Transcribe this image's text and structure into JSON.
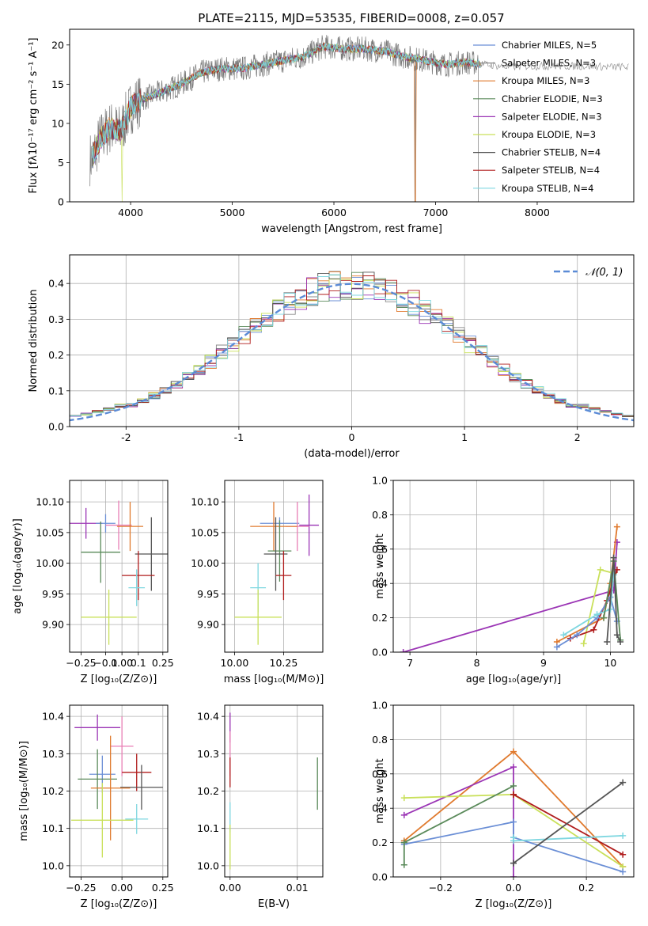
{
  "title": "PLATE=2115, MJD=53535, FIBERID=0008, z=0.057",
  "colors": {
    "Chabrier MILES": "#6b8fd6",
    "Salpeter MILES": "#8a8a8a",
    "Kroupa MILES": "#e07a2e",
    "Chabrier ELODIE": "#5a8a5a",
    "Salpeter ELODIE": "#9b35b5",
    "Kroupa ELODIE": "#c9e05a",
    "Chabrier STELIB": "#555555",
    "Salpeter STELIB": "#b01c1c",
    "Kroupa STELIB": "#7fd7e0",
    "data": "#7a7a7a",
    "pink": "#e87fb5",
    "lightgreen": "#90e08a",
    "gauss": "#5b8bd6"
  },
  "chart_data": [
    {
      "type": "line",
      "xlabel": "wavelength [Angstrom, rest frame]",
      "ylabel": "Flux [fλ10⁻¹⁷ erg cm⁻² s⁻¹ A⁻¹]",
      "xlim": [
        3400,
        8950
      ],
      "ylim": [
        0,
        22
      ],
      "xticks": [
        4000,
        5000,
        6000,
        7000,
        8000
      ],
      "yticks": [
        0,
        5,
        10,
        15,
        20
      ],
      "grid": false,
      "legend_position": "top-right",
      "legend": [
        {
          "label": "Chabrier MILES, N_SSP=5",
          "color": "#6b8fd6"
        },
        {
          "label": "Salpeter MILES, N_SSP=3",
          "color": "#8a8a8a"
        },
        {
          "label": "Kroupa MILES, N_SSP=3",
          "color": "#e07a2e"
        },
        {
          "label": "Chabrier ELODIE, N_SSP=3",
          "color": "#5a8a5a"
        },
        {
          "label": "Salpeter ELODIE, N_SSP=3",
          "color": "#9b35b5"
        },
        {
          "label": "Kroupa ELODIE, N_SSP=3",
          "color": "#c9e05a"
        },
        {
          "label": "Chabrier STELIB, N_SSP=4",
          "color": "#555555"
        },
        {
          "label": "Salpeter STELIB, N_SSP=4",
          "color": "#b01c1c"
        },
        {
          "label": "Kroupa STELIB, N_SSP=4",
          "color": "#7fd7e0"
        }
      ],
      "continuum": {
        "x": [
          3620,
          3700,
          3800,
          3900,
          4000,
          4100,
          4300,
          4500,
          4700,
          4900,
          5100,
          5300,
          5500,
          5700,
          5900,
          6100,
          6300,
          6500,
          6700,
          6900,
          7100,
          7300,
          7500,
          7700,
          7900,
          8100,
          8300,
          8500,
          8700,
          8900
        ],
        "y": [
          5.5,
          8.0,
          9.5,
          9.0,
          12.0,
          13.0,
          14.0,
          15.0,
          16.5,
          17.0,
          17.0,
          17.5,
          18.0,
          18.5,
          19.8,
          19.5,
          19.5,
          19.2,
          18.5,
          18.0,
          17.5,
          17.8,
          17.5,
          17.2,
          17.3,
          17.3,
          17.3,
          17.3,
          17.2,
          17.2
        ]
      },
      "data_range": [
        3600,
        7420
      ],
      "dips": [
        {
          "x": 6800,
          "y": 0
        },
        {
          "x": 7420,
          "y": 0
        },
        {
          "x": 3920,
          "y": 0
        }
      ]
    },
    {
      "type": "histogram",
      "xlabel": "(data-model)/error",
      "ylabel": "Normed distribution",
      "xlim": [
        -2.5,
        2.5
      ],
      "ylim": [
        0,
        0.48
      ],
      "xticks": [
        -2,
        -1,
        0,
        1,
        2
      ],
      "yticks": [
        0.0,
        0.1,
        0.2,
        0.3,
        0.4
      ],
      "grid": true,
      "bin_width": 0.1,
      "legend": [
        {
          "label": "𝒩(0, 1)",
          "color": "#5b8bd6"
        }
      ],
      "legend_position": "top-right",
      "gaussian": {
        "mu": 0,
        "sigma": 1
      }
    },
    {
      "type": "scatter",
      "panel": "age_vs_Z",
      "xlabel": "Z [log₁₀(Z/Z⊙)]",
      "ylabel": "age  [log₁₀(age/yr)]",
      "xlim": [
        -0.32,
        0.28
      ],
      "ylim": [
        9.855,
        10.135
      ],
      "xticks": [
        -0.25,
        -0.1,
        0.0,
        0.1,
        0.25
      ],
      "xticklabels": [
        "−0.25",
        "−0.1",
        "0.00",
        "0.1",
        "0.25"
      ],
      "yticks": [
        9.9,
        9.95,
        10.0,
        10.05,
        10.1
      ],
      "grid": true,
      "points": [
        {
          "x": -0.22,
          "y": 10.065,
          "xerr": 0.1,
          "yerr": 0.025,
          "color": "#9b35b5"
        },
        {
          "x": -0.1,
          "y": 10.065,
          "xerr": 0.06,
          "yerr": 0.015,
          "color": "#6b8fd6"
        },
        {
          "x": -0.02,
          "y": 10.062,
          "xerr": 0.08,
          "yerr": 0.04,
          "color": "#e87fb5"
        },
        {
          "x": 0.05,
          "y": 10.06,
          "xerr": 0.08,
          "yerr": 0.04,
          "color": "#e07a2e"
        },
        {
          "x": -0.13,
          "y": 10.018,
          "xerr": 0.12,
          "yerr": 0.05,
          "color": "#5a8a5a"
        },
        {
          "x": 0.18,
          "y": 10.015,
          "xerr": 0.1,
          "yerr": 0.06,
          "color": "#555555"
        },
        {
          "x": 0.1,
          "y": 9.98,
          "xerr": 0.1,
          "yerr": 0.04,
          "color": "#b01c1c"
        },
        {
          "x": 0.09,
          "y": 9.96,
          "xerr": 0.05,
          "yerr": 0.03,
          "color": "#7fd7e0"
        },
        {
          "x": -0.08,
          "y": 9.912,
          "xerr": 0.17,
          "yerr": 0.045,
          "color": "#c9e05a"
        }
      ]
    },
    {
      "type": "scatter",
      "panel": "age_vs_mass",
      "xlabel": "mass [log₁₀(M/M⊙)]",
      "ylabel": "",
      "xlim": [
        9.95,
        10.45
      ],
      "ylim": [
        9.855,
        10.135
      ],
      "xticks": [
        10.0,
        10.25
      ],
      "xticklabels": [
        "10.00",
        "10.25"
      ],
      "yticks": [
        9.9,
        9.95,
        10.0,
        10.05,
        10.1
      ],
      "grid": true,
      "points": [
        {
          "x": 10.38,
          "y": 10.062,
          "xerr": 0.05,
          "yerr": 0.05,
          "color": "#9b35b5"
        },
        {
          "x": 10.23,
          "y": 10.065,
          "xerr": 0.1,
          "yerr": 0.01,
          "color": "#6b8fd6"
        },
        {
          "x": 10.32,
          "y": 10.06,
          "xerr": 0.06,
          "yerr": 0.04,
          "color": "#e87fb5"
        },
        {
          "x": 10.2,
          "y": 10.06,
          "xerr": 0.12,
          "yerr": 0.04,
          "color": "#e07a2e"
        },
        {
          "x": 10.23,
          "y": 10.02,
          "xerr": 0.06,
          "yerr": 0.05,
          "color": "#5a8a5a"
        },
        {
          "x": 10.21,
          "y": 10.015,
          "xerr": 0.06,
          "yerr": 0.06,
          "color": "#555555"
        },
        {
          "x": 10.25,
          "y": 9.98,
          "xerr": 0.04,
          "yerr": 0.04,
          "color": "#b01c1c"
        },
        {
          "x": 10.12,
          "y": 9.96,
          "xerr": 0.04,
          "yerr": 0.04,
          "color": "#7fd7e0"
        },
        {
          "x": 10.12,
          "y": 9.912,
          "xerr": 0.12,
          "yerr": 0.045,
          "color": "#c9e05a"
        }
      ]
    },
    {
      "type": "line",
      "panel": "mass_weight_vs_age",
      "xlabel": "age  [log₁₀(age/yr)]",
      "ylabel": "mass weight",
      "xlim": [
        6.75,
        10.35
      ],
      "ylim": [
        0,
        1.0
      ],
      "xticks": [
        7,
        8,
        9,
        10
      ],
      "yticks": [
        0.0,
        0.2,
        0.4,
        0.6,
        0.8,
        1.0
      ],
      "grid": true,
      "series": [
        {
          "color": "#9b35b5",
          "x": [
            6.9,
            10.05,
            10.1
          ],
          "y": [
            0.0,
            0.36,
            0.64
          ]
        },
        {
          "color": "#e07a2e",
          "x": [
            9.2,
            9.9,
            10.0,
            10.1
          ],
          "y": [
            0.06,
            0.2,
            0.4,
            0.73
          ]
        },
        {
          "color": "#c9e05a",
          "x": [
            9.6,
            9.85,
            10.05
          ],
          "y": [
            0.05,
            0.48,
            0.46
          ]
        },
        {
          "color": "#b01c1c",
          "x": [
            9.4,
            9.75,
            9.95,
            10.1
          ],
          "y": [
            0.08,
            0.13,
            0.3,
            0.48
          ]
        },
        {
          "color": "#6b8fd6",
          "x": [
            9.2,
            9.5,
            9.8,
            10.0,
            10.1
          ],
          "y": [
            0.03,
            0.1,
            0.2,
            0.32,
            0.18
          ]
        },
        {
          "color": "#7fd7e0",
          "x": [
            9.3,
            9.8,
            10.0,
            10.05
          ],
          "y": [
            0.1,
            0.22,
            0.25,
            0.45
          ]
        },
        {
          "color": "#5a8a5a",
          "x": [
            9.9,
            10.05,
            10.15
          ],
          "y": [
            0.2,
            0.53,
            0.07
          ]
        },
        {
          "color": "#555555",
          "x": [
            9.95,
            10.05,
            10.1,
            10.15
          ],
          "y": [
            0.06,
            0.55,
            0.1,
            0.06
          ]
        }
      ]
    },
    {
      "type": "scatter",
      "panel": "mass_vs_Z",
      "xlabel": "Z [log₁₀(Z/Z⊙)]",
      "ylabel": "mass [log₁₀(M/M⊙)]",
      "xlim": [
        -0.32,
        0.28
      ],
      "ylim": [
        9.97,
        10.43
      ],
      "xticks": [
        -0.25,
        0.0,
        0.25
      ],
      "xticklabels": [
        "−0.25",
        "0.00",
        "0.25"
      ],
      "yticks": [
        10.0,
        10.1,
        10.2,
        10.3,
        10.4
      ],
      "grid": true,
      "points": [
        {
          "x": -0.15,
          "y": 10.37,
          "xerr": 0.14,
          "yerr": 0.035,
          "color": "#9b35b5"
        },
        {
          "x": 0.0,
          "y": 10.32,
          "xerr": 0.07,
          "yerr": 0.08,
          "color": "#e87fb5"
        },
        {
          "x": 0.09,
          "y": 10.25,
          "xerr": 0.09,
          "yerr": 0.05,
          "color": "#b01c1c"
        },
        {
          "x": -0.12,
          "y": 10.245,
          "xerr": 0.08,
          "yerr": 0.05,
          "color": "#6b8fd6"
        },
        {
          "x": -0.15,
          "y": 10.232,
          "xerr": 0.12,
          "yerr": 0.08,
          "color": "#5a8a5a"
        },
        {
          "x": 0.12,
          "y": 10.21,
          "xerr": 0.13,
          "yerr": 0.06,
          "color": "#555555"
        },
        {
          "x": -0.07,
          "y": 10.208,
          "xerr": 0.12,
          "yerr": 0.14,
          "color": "#e07a2e"
        },
        {
          "x": 0.09,
          "y": 10.125,
          "xerr": 0.07,
          "yerr": 0.04,
          "color": "#7fd7e0"
        },
        {
          "x": -0.12,
          "y": 10.122,
          "xerr": 0.19,
          "yerr": 0.1,
          "color": "#c9e05a"
        }
      ]
    },
    {
      "type": "scatter",
      "panel": "mass_vs_EBV",
      "xlabel": "E(B-V)",
      "ylabel": "",
      "xlim": [
        -0.0008,
        0.0138
      ],
      "ylim": [
        9.97,
        10.43
      ],
      "xticks": [
        0.0,
        0.01
      ],
      "xticklabels": [
        "0.00",
        "0.01"
      ],
      "yticks": [
        10.0,
        10.1,
        10.2,
        10.3,
        10.4
      ],
      "grid": true,
      "points": [
        {
          "x": 0.0,
          "y": 10.37,
          "xerr": 0,
          "yerr": 0.04,
          "color": "#9b35b5"
        },
        {
          "x": 0.0,
          "y": 10.3,
          "xerr": 0,
          "yerr": 0.06,
          "color": "#e87fb5"
        },
        {
          "x": 0.0,
          "y": 10.25,
          "xerr": 0,
          "yerr": 0.04,
          "color": "#b01c1c"
        },
        {
          "x": 0.0,
          "y": 10.13,
          "xerr": 0,
          "yerr": 0.04,
          "color": "#7fd7e0"
        },
        {
          "x": 0.0,
          "y": 10.05,
          "xerr": 0,
          "yerr": 0.06,
          "color": "#c9e05a"
        },
        {
          "x": 0.013,
          "y": 10.22,
          "xerr": 0,
          "yerr": 0.07,
          "color": "#5a8a5a"
        }
      ]
    },
    {
      "type": "line",
      "panel": "mass_weight_vs_Z",
      "xlabel": "Z [log₁₀(Z/Z⊙)]",
      "ylabel": "mass weight",
      "xlim": [
        -0.33,
        0.33
      ],
      "ylim": [
        0,
        1.0
      ],
      "xticks": [
        -0.2,
        0.0,
        0.2
      ],
      "xticklabels": [
        "−0.2",
        "0.0",
        "0.2"
      ],
      "yticks": [
        0.0,
        0.2,
        0.4,
        0.6,
        0.8,
        1.0
      ],
      "grid": true,
      "series": [
        {
          "color": "#e07a2e",
          "x": [
            -0.3,
            0.0,
            0.3
          ],
          "y": [
            0.21,
            0.73,
            0.06
          ]
        },
        {
          "color": "#9b35b5",
          "x": [
            -0.3,
            0.0,
            0.0
          ],
          "y": [
            0.36,
            0.64,
            0.0
          ]
        },
        {
          "color": "#c9e05a",
          "x": [
            -0.3,
            0.0,
            0.3
          ],
          "y": [
            0.46,
            0.48,
            0.06
          ]
        },
        {
          "color": "#b01c1c",
          "x": [
            0.0,
            0.0,
            0.3
          ],
          "y": [
            0.48,
            0.48,
            0.13
          ]
        },
        {
          "color": "#6b8fd6",
          "x": [
            -0.3,
            0.0,
            0.0,
            0.3
          ],
          "y": [
            0.19,
            0.32,
            0.23,
            0.03
          ]
        },
        {
          "color": "#7fd7e0",
          "x": [
            0.0,
            0.0,
            0.3
          ],
          "y": [
            0.23,
            0.21,
            0.24
          ]
        },
        {
          "color": "#5a8a5a",
          "x": [
            -0.3,
            -0.3,
            0.0
          ],
          "y": [
            0.07,
            0.2,
            0.53
          ]
        },
        {
          "color": "#555555",
          "x": [
            0.0,
            0.0,
            0.3
          ],
          "y": [
            0.08,
            0.08,
            0.55
          ]
        }
      ]
    }
  ]
}
